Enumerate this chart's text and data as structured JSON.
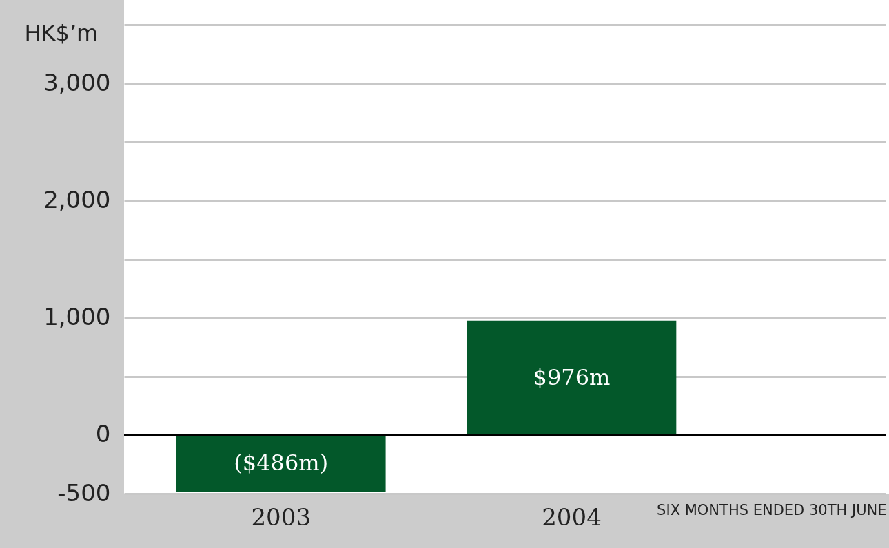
{
  "chart_data": {
    "type": "bar",
    "ylabel": "HK$’m",
    "categories": [
      "2003",
      "2004"
    ],
    "values": [
      -486,
      976
    ],
    "value_labels": [
      "($486m)",
      "$976m"
    ],
    "color": "#03582a",
    "ylim": [
      -500,
      3500
    ],
    "yticks": [
      {
        "value": -500,
        "label": "-500"
      },
      0,
      {
        "value": 500,
        "label": null
      },
      {
        "value": 1000,
        "label": "1,000"
      },
      {
        "value": 1500,
        "label": null
      },
      {
        "value": 2000,
        "label": "2,000"
      },
      {
        "value": 2500,
        "label": null
      },
      {
        "value": 3000,
        "label": "3,000"
      },
      {
        "value": 3500,
        "label": null
      }
    ],
    "grid": "y",
    "annotations": [
      "SIX MONTHS ENDED 30TH JUNE"
    ]
  }
}
